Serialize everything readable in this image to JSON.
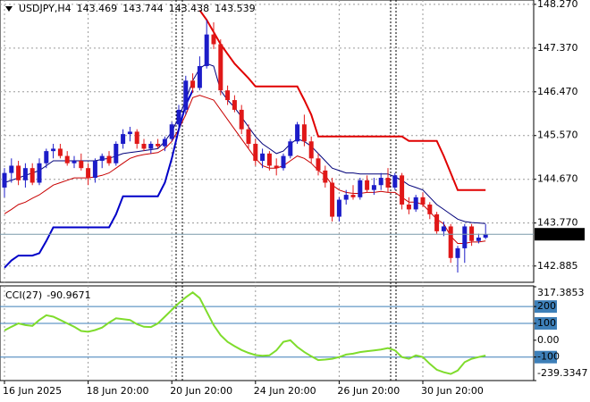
{
  "chart_data": [
    {
      "type": "candlestick",
      "title": "USDJPY,H4",
      "categories": [
        "16 Jun 2025",
        null,
        null,
        null,
        null,
        null,
        null,
        null,
        null,
        null,
        null,
        null,
        "18 Jun 20:00",
        null,
        null,
        null,
        null,
        null,
        null,
        null,
        null,
        null,
        null,
        null,
        "20 Jun 20:00",
        null,
        null,
        null,
        null,
        null,
        null,
        null,
        null,
        null,
        null,
        null,
        "24 Jun 20:00",
        null,
        null,
        null,
        null,
        null,
        null,
        null,
        null,
        null,
        null,
        null,
        "26 Jun 20:00",
        null,
        null,
        null,
        null,
        null,
        null,
        null,
        null,
        null,
        null,
        null,
        "30 Jun 20:00",
        null,
        null,
        null,
        null,
        null,
        null,
        null,
        null,
        null
      ],
      "open": [
        144.5,
        144.8,
        144.95,
        144.65,
        144.9,
        144.6,
        145.0,
        145.25,
        145.3,
        145.15,
        145.0,
        145.05,
        144.9,
        144.7,
        145.05,
        145.15,
        145.0,
        145.4,
        145.6,
        145.65,
        145.4,
        145.3,
        145.4,
        145.35,
        145.5,
        145.8,
        146.1,
        146.7,
        146.55,
        147.0,
        147.65,
        147.45,
        146.5,
        146.3,
        146.1,
        145.7,
        145.4,
        145.05,
        145.2,
        144.95,
        144.9,
        145.15,
        145.45,
        145.8,
        145.45,
        145.1,
        144.85,
        144.6,
        143.9,
        144.25,
        144.35,
        144.3,
        144.65,
        144.45,
        144.55,
        144.7,
        144.5,
        144.75,
        144.15,
        144.05,
        144.3,
        144.15,
        143.95,
        143.6,
        143.7,
        143.05,
        143.25,
        143.7,
        143.4,
        143.469
      ],
      "high": [
        144.9,
        145.1,
        145.05,
        145.0,
        145.0,
        145.1,
        145.3,
        145.4,
        145.4,
        145.25,
        145.15,
        145.2,
        145.0,
        145.1,
        145.2,
        145.25,
        145.45,
        145.7,
        145.75,
        145.7,
        145.5,
        145.45,
        145.5,
        145.55,
        145.85,
        146.2,
        146.8,
        146.85,
        147.2,
        147.95,
        147.9,
        147.55,
        146.6,
        146.4,
        146.2,
        145.8,
        145.5,
        145.3,
        145.25,
        145.1,
        145.2,
        145.5,
        145.85,
        146.0,
        145.55,
        145.2,
        144.95,
        144.7,
        144.3,
        144.45,
        144.55,
        144.7,
        144.75,
        144.7,
        144.8,
        144.9,
        144.8,
        144.8,
        144.3,
        144.35,
        144.4,
        144.2,
        144.0,
        143.8,
        143.75,
        143.3,
        143.75,
        143.75,
        143.55,
        143.744
      ],
      "low": [
        144.3,
        144.6,
        144.55,
        144.5,
        144.55,
        144.55,
        144.9,
        145.1,
        145.1,
        144.95,
        144.9,
        144.85,
        144.55,
        144.6,
        144.9,
        144.95,
        144.95,
        145.3,
        145.45,
        145.3,
        145.25,
        145.2,
        145.3,
        145.25,
        145.45,
        145.7,
        146.0,
        146.45,
        146.5,
        146.95,
        147.35,
        146.4,
        146.2,
        146.05,
        145.6,
        145.3,
        144.95,
        144.9,
        144.85,
        144.75,
        144.85,
        145.1,
        145.4,
        145.35,
        145.0,
        144.75,
        144.5,
        143.8,
        143.8,
        144.15,
        144.25,
        144.25,
        144.4,
        144.35,
        144.45,
        144.4,
        144.45,
        144.05,
        143.95,
        144.0,
        144.1,
        143.85,
        143.55,
        143.5,
        142.95,
        142.75,
        142.95,
        143.3,
        143.35,
        143.438
      ],
      "close": [
        144.8,
        144.95,
        144.65,
        144.9,
        144.6,
        145.0,
        145.25,
        145.3,
        145.15,
        145.0,
        145.05,
        144.9,
        144.7,
        145.05,
        145.15,
        145.0,
        145.4,
        145.6,
        145.65,
        145.4,
        145.3,
        145.4,
        145.35,
        145.5,
        145.8,
        146.1,
        146.7,
        146.55,
        147.0,
        147.65,
        147.45,
        146.5,
        146.3,
        146.1,
        145.7,
        145.4,
        145.05,
        145.2,
        144.95,
        144.9,
        145.15,
        145.45,
        145.8,
        145.45,
        145.1,
        144.85,
        144.6,
        143.9,
        144.25,
        144.35,
        144.3,
        144.65,
        144.45,
        144.55,
        144.7,
        144.5,
        144.75,
        144.15,
        144.05,
        144.3,
        144.15,
        143.95,
        143.6,
        143.7,
        143.05,
        143.25,
        143.7,
        143.4,
        143.47,
        143.539
      ],
      "up_color": "#1c1cc8",
      "down_color": "#e01818",
      "series": [
        {
          "color": "#00007a",
          "width": 1,
          "values": [
            144.6,
            144.65,
            144.7,
            144.75,
            144.8,
            144.85,
            144.95,
            145.05,
            145.05,
            145.05,
            145.05,
            145.05,
            145.05,
            145.05,
            145.08,
            145.1,
            145.15,
            145.2,
            145.22,
            145.24,
            145.26,
            145.28,
            145.3,
            145.45,
            145.65,
            145.95,
            146.3,
            146.7,
            146.95,
            147.05,
            147.0,
            146.5,
            146.3,
            146.15,
            145.95,
            145.75,
            145.55,
            145.4,
            145.3,
            145.2,
            145.25,
            145.4,
            145.5,
            145.45,
            145.35,
            145.2,
            145.05,
            144.9,
            144.85,
            144.8,
            144.8,
            144.78,
            144.78,
            144.78,
            144.78,
            144.78,
            144.72,
            144.65,
            144.55,
            144.5,
            144.45,
            144.3,
            144.15,
            144.05,
            143.95,
            143.85,
            143.8,
            143.78,
            143.77,
            143.76
          ]
        },
        {
          "color": "#c80000",
          "width": 1,
          "values": [
            143.96,
            144.05,
            144.15,
            144.2,
            144.28,
            144.35,
            144.45,
            144.55,
            144.6,
            144.65,
            144.7,
            144.7,
            144.7,
            144.72,
            144.75,
            144.8,
            144.9,
            145.0,
            145.1,
            145.15,
            145.18,
            145.2,
            145.22,
            145.3,
            145.45,
            145.7,
            146.0,
            146.35,
            146.4,
            146.35,
            146.3,
            146.1,
            145.9,
            145.7,
            145.5,
            145.3,
            145.1,
            144.95,
            144.9,
            144.9,
            144.95,
            145.05,
            145.15,
            145.1,
            145.0,
            144.85,
            144.75,
            144.55,
            144.45,
            144.4,
            144.38,
            144.38,
            144.4,
            144.4,
            144.42,
            144.4,
            144.4,
            144.3,
            144.2,
            144.2,
            144.15,
            144.0,
            143.85,
            143.75,
            143.5,
            143.35,
            143.35,
            143.38,
            143.38,
            143.4
          ]
        },
        {
          "color": "#e00000",
          "width": 2,
          "values": [
            null,
            null,
            null,
            null,
            null,
            null,
            null,
            null,
            null,
            null,
            null,
            null,
            null,
            null,
            null,
            null,
            null,
            null,
            null,
            null,
            null,
            null,
            null,
            null,
            null,
            null,
            null,
            null,
            148.15,
            147.95,
            147.7,
            147.45,
            147.25,
            147.05,
            146.9,
            146.75,
            146.58,
            146.58,
            146.58,
            146.58,
            146.58,
            146.58,
            146.58,
            146.3,
            146.0,
            145.55,
            145.55,
            145.55,
            145.55,
            145.55,
            145.55,
            145.55,
            145.55,
            145.55,
            145.55,
            145.55,
            145.55,
            145.55,
            145.46,
            145.46,
            145.46,
            145.46,
            145.46,
            145.15,
            144.8,
            144.45,
            144.45,
            144.45,
            144.45,
            144.45
          ]
        },
        {
          "color": "#0000c8",
          "width": 2,
          "values": [
            142.85,
            143.0,
            143.1,
            143.1,
            143.1,
            143.15,
            143.4,
            143.68,
            143.68,
            143.68,
            143.68,
            143.68,
            143.68,
            143.68,
            143.68,
            143.68,
            143.95,
            144.32,
            144.32,
            144.32,
            144.32,
            144.32,
            144.32,
            144.6,
            145.1,
            145.7,
            146.2,
            146.5,
            null,
            null,
            null,
            null,
            null,
            null,
            null,
            null,
            null,
            null,
            null,
            null,
            null,
            null,
            null,
            null,
            null,
            null,
            null,
            null,
            null,
            null,
            null,
            null,
            null,
            null,
            null,
            null,
            null,
            null,
            null,
            null,
            null,
            null,
            null,
            null,
            null,
            null,
            null,
            null,
            null,
            null
          ]
        }
      ],
      "ylim": [
        142.55,
        148.36
      ],
      "yticks": [
        {
          "value": 148.27,
          "label": "148.270"
        },
        {
          "value": 147.37,
          "label": "147.370"
        },
        {
          "value": 146.47,
          "label": "146.470"
        },
        {
          "value": 145.57,
          "label": "145.570"
        },
        {
          "value": 144.67,
          "label": "144.670"
        },
        {
          "value": 143.77,
          "label": "143.770"
        },
        142.885
      ],
      "grid": true
    },
    {
      "type": "line",
      "title": "CCI(27)",
      "values": [
        58,
        80,
        100,
        90,
        85,
        120,
        148,
        140,
        120,
        100,
        80,
        55,
        50,
        60,
        75,
        105,
        130,
        125,
        120,
        95,
        80,
        78,
        100,
        140,
        180,
        220,
        255,
        284,
        250,
        170,
        90,
        30,
        -10,
        -35,
        -58,
        -75,
        -88,
        -92,
        -90,
        -60,
        -10,
        0,
        -40,
        -70,
        -95,
        -118,
        -115,
        -110,
        -100,
        -85,
        -80,
        -70,
        -65,
        -60,
        -55,
        -47,
        -60,
        -100,
        -110,
        -90,
        -100,
        -140,
        -175,
        -190,
        -200,
        -180,
        -130,
        -110,
        -100,
        -90.9671
      ],
      "color": "#7fdc2c",
      "ylim": [
        -239.3347,
        317.3853
      ],
      "yticks": [
        317.3853,
        200,
        100,
        {
          "value": 0,
          "label": "0.00"
        },
        -100,
        -239.3347
      ],
      "levels": [
        200,
        100,
        -100
      ],
      "level_color": "#3d7fb8"
    }
  ]
}
